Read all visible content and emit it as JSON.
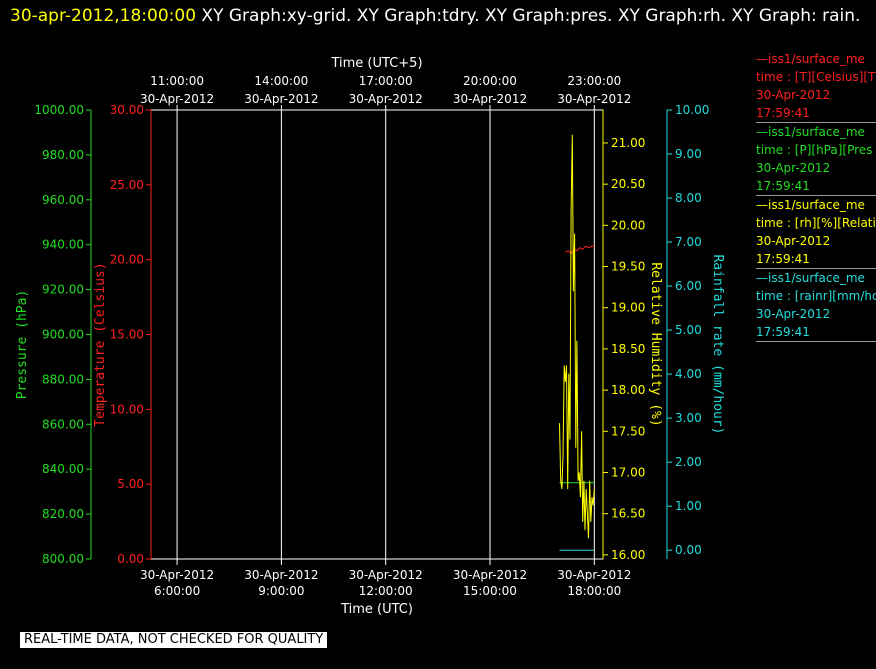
{
  "header": {
    "timestamp": "30-apr-2012,18:00:00",
    "rest": " XY Graph:xy-grid.  XY Graph:tdry.  XY Graph:pres.  XY Graph:rh.  XY Graph: rain."
  },
  "legend": [
    {
      "name": "—iss1/surface_me",
      "units": "time : [T][Celsius][T",
      "date": "30-Apr-2012",
      "time": "17:59:41",
      "color": "#ff2020"
    },
    {
      "name": "—iss1/surface_me",
      "units": "time : [P][hPa][Pres",
      "date": "30-Apr-2012",
      "time": "17:59:41",
      "color": "#22dd22"
    },
    {
      "name": "—iss1/surface_me",
      "units": "time : [rh][%][Relati",
      "date": "30-Apr-2012",
      "time": "17:59:41",
      "color": "#ffff00"
    },
    {
      "name": "—iss1/surface_me",
      "units": "time : [rainr][mm/ho",
      "date": "30-Apr-2012",
      "time": "17:59:41",
      "color": "#22dddd"
    }
  ],
  "disclaimer": "REAL-TIME DATA, NOT CHECKED FOR QUALITY",
  "chart_data": {
    "type": "line",
    "top_axis": {
      "label": "Time (UTC+5)",
      "ticks": [
        {
          "time": "11:00:00",
          "date": "30-Apr-2012"
        },
        {
          "time": "14:00:00",
          "date": "30-Apr-2012"
        },
        {
          "time": "17:00:00",
          "date": "30-Apr-2012"
        },
        {
          "time": "20:00:00",
          "date": "30-Apr-2012"
        },
        {
          "time": "23:00:00",
          "date": "30-Apr-2012"
        }
      ]
    },
    "bottom_axis": {
      "label": "Time (UTC)",
      "range": [
        "2012-04-30 05:15",
        "2012-04-30 18:15"
      ],
      "ticks": [
        {
          "date": "30-Apr-2012",
          "time": "6:00:00"
        },
        {
          "date": "30-Apr-2012",
          "time": "9:00:00"
        },
        {
          "date": "30-Apr-2012",
          "time": "12:00:00"
        },
        {
          "date": "30-Apr-2012",
          "time": "15:00:00"
        },
        {
          "date": "30-Apr-2012",
          "time": "18:00:00"
        }
      ]
    },
    "y_axes": [
      {
        "label": "Pressure (hPa)",
        "color": "#22dd22",
        "range": [
          800,
          1000
        ],
        "ticks": [
          "800.00",
          "820.00",
          "840.00",
          "860.00",
          "880.00",
          "900.00",
          "920.00",
          "940.00",
          "960.00",
          "980.00",
          "1000.00"
        ]
      },
      {
        "label": "Temperature (Celsius)",
        "color": "#ff2020",
        "range": [
          0,
          30
        ],
        "ticks": [
          "0.00",
          "5.00",
          "10.00",
          "15.00",
          "20.00",
          "25.00",
          "30.00"
        ]
      },
      {
        "label": "Relative Humidity (%)",
        "color": "#ffff00",
        "range": [
          15.95,
          21.4
        ],
        "ticks": [
          "16.00",
          "16.50",
          "17.00",
          "17.50",
          "18.00",
          "18.50",
          "19.00",
          "19.50",
          "20.00",
          "20.50",
          "21.00"
        ]
      },
      {
        "label": "Rainfall rate (mm/hour)",
        "color": "#22dddd",
        "range": [
          -0.2,
          10
        ],
        "ticks": [
          "0.00",
          "1.00",
          "2.00",
          "3.00",
          "4.00",
          "5.00",
          "6.00",
          "7.00",
          "8.00",
          "9.00",
          "10.00"
        ]
      }
    ],
    "grid": true,
    "series": [
      {
        "axis": 1,
        "color": "#ff2020",
        "t": [
          "17:10",
          "17:15",
          "17:20",
          "17:25",
          "17:30",
          "17:35",
          "17:40",
          "17:45",
          "17:50",
          "17:55",
          "18:00"
        ],
        "y": [
          20.5,
          20.6,
          20.4,
          20.7,
          20.6,
          20.8,
          20.7,
          20.9,
          20.8,
          20.9,
          20.9
        ]
      },
      {
        "axis": 0,
        "color": "#22dd22",
        "t": [
          "17:00",
          "17:10",
          "17:20",
          "17:30",
          "17:40",
          "17:50",
          "18:00"
        ],
        "y": [
          834,
          834,
          834,
          834,
          834,
          834,
          834
        ]
      },
      {
        "axis": 2,
        "color": "#ffff00",
        "t": [
          "17:00",
          "17:02",
          "17:04",
          "17:06",
          "17:08",
          "17:10",
          "17:12",
          "17:14",
          "17:16",
          "17:18",
          "17:20",
          "17:22",
          "17:24",
          "17:26",
          "17:28",
          "17:30",
          "17:32",
          "17:34",
          "17:36",
          "17:38",
          "17:40",
          "17:42",
          "17:44",
          "17:46",
          "17:48",
          "17:50",
          "17:52",
          "17:54",
          "17:56",
          "17:58",
          "18:00"
        ],
        "y": [
          17.6,
          16.9,
          16.8,
          17.2,
          18.3,
          18.1,
          18.3,
          16.8,
          18.2,
          17.4,
          20.2,
          21.1,
          19.2,
          19.9,
          17.3,
          18.6,
          16.9,
          17.0,
          16.7,
          17.5,
          16.4,
          16.9,
          16.3,
          16.8,
          16.5,
          16.2,
          16.9,
          16.4,
          16.7,
          16.6,
          16.8
        ]
      },
      {
        "axis": 3,
        "color": "#22dddd",
        "t": [
          "17:00",
          "17:10",
          "17:20",
          "17:30",
          "17:40",
          "17:50",
          "18:00"
        ],
        "y": [
          0,
          0,
          0,
          0,
          0,
          0,
          0
        ]
      }
    ]
  }
}
